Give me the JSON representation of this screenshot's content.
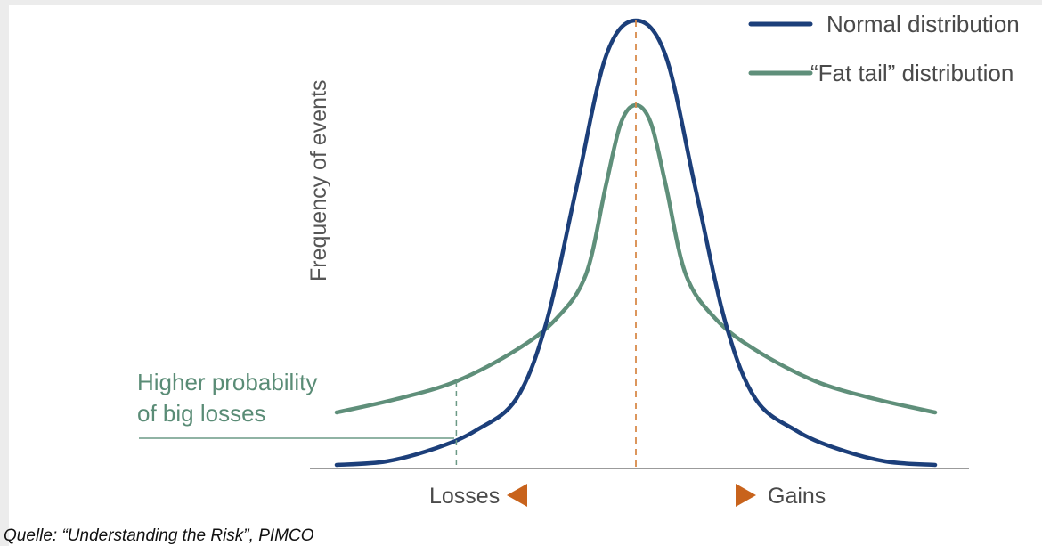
{
  "chart_data": {
    "type": "line",
    "title": "",
    "ylabel": "Frequency of events",
    "x_left_label": "Losses",
    "x_right_label": "Gains",
    "annotation": [
      "Higher probability",
      "of big losses"
    ],
    "source": "Quelle: “Understanding the Risk”, PIMCO",
    "series": [
      {
        "name": "Normal distribution",
        "color": "#1c3f7a",
        "x": [
          -3.0,
          -2.5,
          -2.0,
          -1.6,
          -1.2,
          -0.9,
          -0.6,
          -0.3,
          0.0,
          0.3,
          0.6,
          0.9,
          1.2,
          1.6,
          2.0,
          2.5,
          3.0
        ],
        "y": [
          0.002,
          0.01,
          0.04,
          0.08,
          0.15,
          0.32,
          0.62,
          0.92,
          1.0,
          0.92,
          0.62,
          0.32,
          0.15,
          0.08,
          0.04,
          0.01,
          0.002
        ]
      },
      {
        "name": "“Fat tail” distribution",
        "color": "#5f8f7a",
        "x": [
          -3.0,
          -2.4,
          -1.8,
          -1.2,
          -0.8,
          -0.5,
          -0.3,
          -0.15,
          0.0,
          0.15,
          0.3,
          0.5,
          0.8,
          1.2,
          1.8,
          2.4,
          3.0
        ],
        "y": [
          0.12,
          0.15,
          0.19,
          0.26,
          0.33,
          0.43,
          0.63,
          0.77,
          0.81,
          0.77,
          0.63,
          0.43,
          0.33,
          0.26,
          0.19,
          0.15,
          0.12
        ]
      }
    ],
    "xlim": [
      -3.0,
      3.0
    ],
    "ylim": [
      0,
      1.0
    ],
    "annotation_x": -1.8,
    "center_x": 0.0
  }
}
